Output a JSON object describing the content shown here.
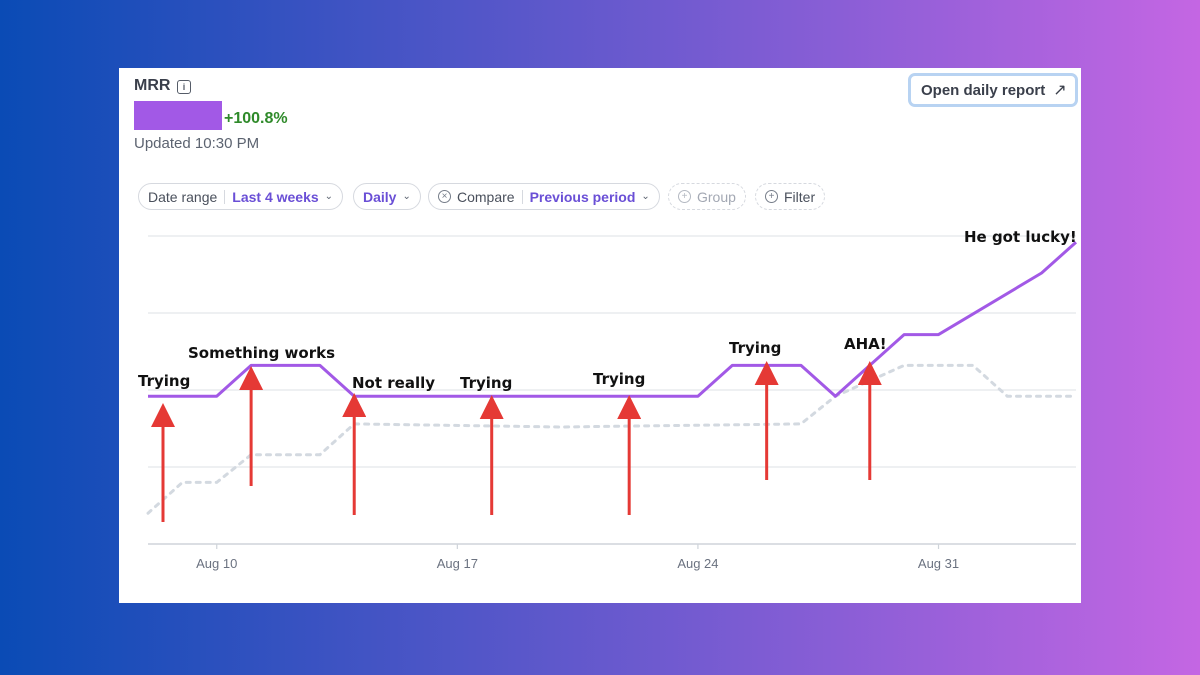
{
  "metric": {
    "title": "MRR",
    "info_icon": "info-icon",
    "change": "+100.8%",
    "updated": "Updated 10:30 PM",
    "value_redacted_color": "#a259e6"
  },
  "actions": {
    "open_report_label": "Open daily report",
    "open_report_icon": "arrow-up-right-icon"
  },
  "filters": {
    "date_range": {
      "label": "Date range",
      "value": "Last 4 weeks"
    },
    "interval": {
      "value": "Daily"
    },
    "compare": {
      "label": "Compare",
      "value": "Previous period"
    },
    "group": {
      "label": "Group"
    },
    "filter": {
      "label": "Filter"
    }
  },
  "colors": {
    "current_line": "#a259e6",
    "previous_line": "#d3d9e0",
    "arrows": "#e53935",
    "accent_text": "#6a4fd6",
    "positive": "#2f8a2a"
  },
  "chart_data": {
    "type": "line",
    "x_start": "Aug 8",
    "x_end": "Sep 4",
    "xticks": [
      "Aug 10",
      "Aug 17",
      "Aug 24",
      "Aug 31"
    ],
    "grid": true,
    "series": [
      {
        "style": "solid",
        "points": [
          [
            "Aug 8",
            0.48
          ],
          [
            "Aug 10",
            0.48
          ],
          [
            "Aug 11",
            0.58
          ],
          [
            "Aug 13",
            0.58
          ],
          [
            "Aug 14",
            0.48
          ],
          [
            "Aug 24",
            0.48
          ],
          [
            "Aug 25",
            0.58
          ],
          [
            "Aug 27",
            0.58
          ],
          [
            "Aug 28",
            0.48
          ],
          [
            "Aug 30",
            0.68
          ],
          [
            "Aug 31",
            0.68
          ],
          [
            "Sep 3",
            0.88
          ],
          [
            "Sep 4",
            0.98
          ]
        ]
      },
      {
        "style": "dashed",
        "points": [
          [
            "Aug 8",
            0.1
          ],
          [
            "Aug 9",
            0.2
          ],
          [
            "Aug 10",
            0.2
          ],
          [
            "Aug 11",
            0.29
          ],
          [
            "Aug 13",
            0.29
          ],
          [
            "Aug 14",
            0.39
          ],
          [
            "Aug 20",
            0.38
          ],
          [
            "Aug 27",
            0.39
          ],
          [
            "Aug 28",
            0.48
          ],
          [
            "Aug 30",
            0.58
          ],
          [
            "Sep 1",
            0.58
          ],
          [
            "Sep 2",
            0.48
          ],
          [
            "Sep 4",
            0.48
          ]
        ]
      }
    ],
    "annotations": [
      {
        "text": "Trying",
        "date": "Aug 8"
      },
      {
        "text": "Something works",
        "date": "Aug 11"
      },
      {
        "text": "Not really",
        "date": "Aug 14"
      },
      {
        "text": "Trying",
        "date": "Aug 18"
      },
      {
        "text": "Trying",
        "date": "Aug 21"
      },
      {
        "text": "Trying",
        "date": "Aug 25"
      },
      {
        "text": "AHA!",
        "date": "Aug 29"
      },
      {
        "text": "He got lucky!",
        "date": "Sep 3"
      }
    ],
    "arrows": [
      "Aug 8",
      "Aug 11",
      "Aug 14",
      "Aug 18",
      "Aug 22",
      "Aug 26",
      "Aug 29"
    ]
  }
}
